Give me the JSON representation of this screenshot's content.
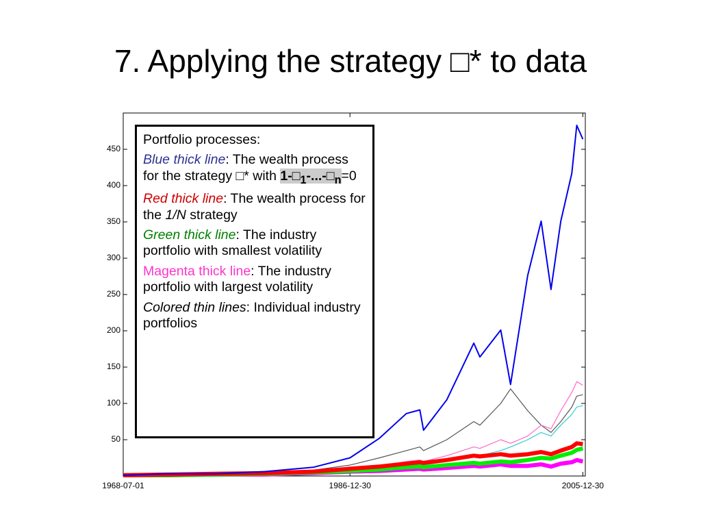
{
  "title": "7. Applying the strategy □* to data",
  "chart_data": {
    "type": "line",
    "x": [
      1968.5,
      1972,
      1976,
      1980,
      1984,
      1987,
      1989.4,
      1991.6,
      1992.7,
      1993,
      1994.9,
      1997.1,
      1997.6,
      1999.3,
      2000.1,
      2001.5,
      2002.6,
      2003.4,
      2004.2,
      2005.1,
      2005.5,
      2006
    ],
    "xlim": [
      1968.5,
      2006.2
    ],
    "xticks": [
      {
        "value": 1968.5,
        "label": "1968-07-01"
      },
      {
        "value": 1987.0,
        "label": "1986-12-30"
      },
      {
        "value": 2006.0,
        "label": "2005-12-30"
      }
    ],
    "ylim": [
      0,
      500
    ],
    "yticks": [
      50,
      100,
      150,
      200,
      250,
      300,
      350,
      400,
      450
    ],
    "series": [
      {
        "color": "#555555",
        "line_width": 1.2,
        "values": [
          1,
          2,
          2,
          4,
          8,
          15,
          25,
          35,
          40,
          35,
          50,
          75,
          70,
          100,
          120,
          90,
          70,
          60,
          75,
          95,
          110,
          112
        ]
      },
      {
        "color": "#ff66cc",
        "line_width": 1.2,
        "values": [
          1,
          2,
          2,
          3,
          6,
          10,
          14,
          20,
          22,
          20,
          28,
          40,
          38,
          50,
          45,
          55,
          70,
          65,
          90,
          115,
          130,
          125
        ]
      },
      {
        "color": "#33cccc",
        "line_width": 1.2,
        "values": [
          1,
          1,
          2,
          3,
          5,
          8,
          11,
          15,
          16,
          15,
          20,
          30,
          28,
          35,
          40,
          50,
          60,
          55,
          70,
          85,
          95,
          97
        ]
      },
      {
        "color": "#ff00ff",
        "line_width": 6,
        "values": [
          1,
          1,
          2,
          2,
          4,
          6,
          7,
          9,
          10,
          9,
          11,
          14,
          13,
          16,
          14,
          14,
          16,
          13,
          17,
          19,
          22,
          20
        ]
      },
      {
        "color": "#00ee00",
        "line_width": 6,
        "values": [
          1,
          1,
          2,
          3,
          5,
          7,
          9,
          12,
          13,
          12,
          15,
          18,
          17,
          20,
          19,
          22,
          25,
          24,
          28,
          32,
          36,
          38
        ]
      },
      {
        "color": "#ff0000",
        "line_width": 6,
        "values": [
          1,
          2,
          3,
          4,
          6,
          10,
          13,
          17,
          19,
          18,
          22,
          28,
          27,
          30,
          28,
          30,
          33,
          30,
          35,
          40,
          45,
          44
        ]
      },
      {
        "color": "#0000ee",
        "line_width": 2,
        "values": [
          1,
          3,
          3,
          6,
          12,
          25,
          52,
          86,
          91,
          63,
          105,
          183,
          164,
          201,
          126,
          276,
          351,
          257,
          351,
          417,
          483,
          464
        ]
      }
    ]
  },
  "text_box": {
    "heading": "Portfolio processes:",
    "items": [
      {
        "label": "Blue thick line",
        "color": "#2e3192",
        "text": ": The wealth process for the strategy □* with ",
        "formula": [
          "1-□",
          "1",
          "-...-□",
          "n"
        ],
        "text_end": "=0"
      },
      {
        "label": "Red thick line",
        "color": "#cc0000",
        "text": ": The wealth process for the ",
        "text_italic": "1/N",
        "text_end": " strategy"
      },
      {
        "label": "Green thick line",
        "color": "#008000",
        "text": ": The industry portfolio with smallest volatility"
      },
      {
        "label": "Magenta thick line",
        "color": "#ff33cc",
        "italic": false,
        "text": ": The industry portfolio with largest volatility"
      },
      {
        "label": "Colored thin lines",
        "color": "#000000",
        "text": ": Individual industry portfolios"
      }
    ]
  }
}
